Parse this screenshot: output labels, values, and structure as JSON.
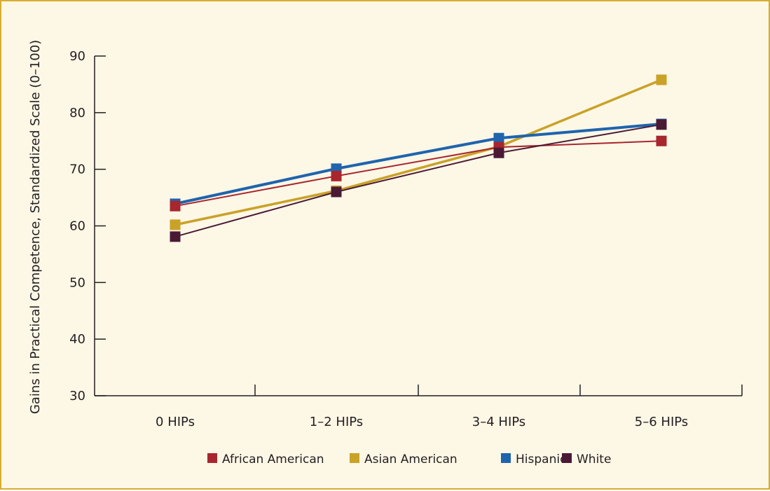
{
  "chart_data": {
    "type": "line",
    "title": "",
    "xlabel": "",
    "ylabel": "Gains in Practical Competence, Standardized Scale (0–100)",
    "categories": [
      "0 HIPs",
      "1–2 HIPs",
      "3–4 HIPs",
      "5–6 HIPs"
    ],
    "ylim": [
      30,
      90
    ],
    "yticks": [
      30,
      40,
      50,
      60,
      70,
      80,
      90
    ],
    "grid": false,
    "legend_position": "bottom",
    "series": [
      {
        "name": "African American",
        "color": "#a8262e",
        "values": [
          63.5,
          68.8,
          73.9,
          75.0
        ]
      },
      {
        "name": "Asian American",
        "color": "#c9a227",
        "values": [
          60.2,
          66.2,
          74.0,
          85.8
        ]
      },
      {
        "name": "Hispanic",
        "color": "#1f64ad",
        "values": [
          63.9,
          70.1,
          75.5,
          78.0
        ]
      },
      {
        "name": "White",
        "color": "#4a1a35",
        "values": [
          58.1,
          66.0,
          72.9,
          77.9
        ]
      }
    ]
  }
}
